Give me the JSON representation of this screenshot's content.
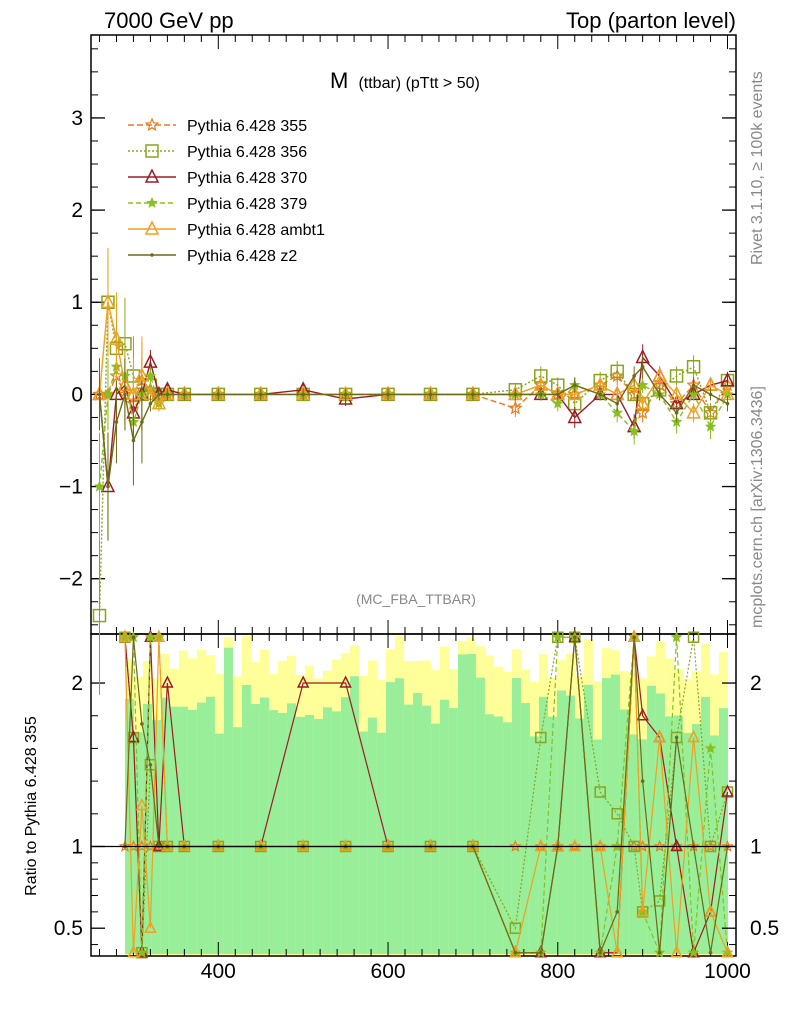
{
  "header": {
    "left": "7000 GeV pp",
    "right": "Top (parton level)"
  },
  "side_labels": {
    "rivet": "Rivet 3.1.10, ≥ 100k events",
    "source": "mcplots.cern.ch [arXiv:1306.3436]"
  },
  "chart_data": {
    "type": "line",
    "title_main": "M",
    "title_sub": "(ttbar) (pTtt > 50)",
    "analysis_tag": "(MC_FBA_TTBAR)",
    "xlim": [
      250,
      1010
    ],
    "main_panel": {
      "ylim": [
        -2.6,
        3.9
      ],
      "yticks": [
        -2,
        -1,
        0,
        1,
        2,
        3
      ],
      "ytick_labels": [
        "−2",
        "−1",
        "0",
        "1",
        "2",
        "3"
      ]
    },
    "ratio_panel": {
      "ylabel": "Ratio to Pythia 6.428 355",
      "ylim": [
        0.33,
        2.3
      ],
      "yticks": [
        0.5,
        1,
        2
      ],
      "ytick_labels": [
        "0.5",
        "1",
        "2"
      ],
      "reference_line": 1
    },
    "xticks": [
      400,
      600,
      800,
      1000
    ],
    "xtick_labels": [
      "400",
      "600",
      "800",
      "1000"
    ],
    "series": [
      {
        "name": "Pythia 6.428 355",
        "color": "#f07818",
        "marker": "star",
        "dash": "6,3",
        "x": [
          260,
          270,
          280,
          290,
          300,
          310,
          320,
          330,
          340,
          360,
          400,
          450,
          500,
          550,
          600,
          650,
          700,
          750,
          780,
          800,
          820,
          850,
          870,
          890,
          900,
          920,
          940,
          960,
          980,
          1000
        ],
        "y": [
          0,
          0,
          0.2,
          0,
          -0.1,
          0.15,
          0.05,
          0,
          0,
          0,
          0,
          0,
          0,
          0,
          0,
          0,
          0,
          -0.15,
          0.1,
          0,
          0,
          0.1,
          0.2,
          0,
          -0.2,
          0.1,
          -0.1,
          0.1,
          -0.2,
          0.1
        ]
      },
      {
        "name": "Pythia 6.428 356",
        "color": "#8aa41c",
        "marker": "square",
        "dash": "2,2",
        "x": [
          260,
          270,
          280,
          290,
          300,
          310,
          320,
          330,
          340,
          360,
          400,
          450,
          500,
          550,
          600,
          650,
          700,
          750,
          780,
          800,
          820,
          850,
          870,
          890,
          900,
          920,
          940,
          960,
          980,
          1000
        ],
        "y": [
          -2.4,
          1.0,
          0.5,
          0.55,
          0.2,
          0,
          0.1,
          0,
          0,
          0,
          0,
          0,
          0,
          0,
          0,
          0,
          0,
          0.05,
          0.2,
          0.1,
          -0.1,
          0.15,
          0.25,
          0,
          -0.1,
          0.05,
          0.2,
          0.3,
          -0.2,
          0.15
        ]
      },
      {
        "name": "Pythia 6.428 370",
        "color": "#9c1c26",
        "marker": "triangle",
        "dash": "",
        "x": [
          260,
          270,
          280,
          290,
          300,
          310,
          320,
          330,
          340,
          360,
          400,
          450,
          500,
          550,
          600,
          650,
          700,
          750,
          780,
          800,
          820,
          850,
          870,
          890,
          900,
          920,
          940,
          960,
          980,
          1000
        ],
        "y": [
          0,
          -1.0,
          0,
          0.1,
          -0.2,
          0,
          0.35,
          0,
          0.05,
          0,
          0,
          0,
          0.05,
          -0.05,
          0,
          0,
          0,
          0,
          0,
          0,
          -0.25,
          0,
          0,
          -0.35,
          0.4,
          0.2,
          -0.1,
          0,
          0.1,
          0.15
        ]
      },
      {
        "name": "Pythia 6.428 379",
        "color": "#88c020",
        "marker": "smallstar",
        "dash": "5,3",
        "x": [
          260,
          270,
          280,
          290,
          300,
          310,
          320,
          330,
          340,
          360,
          400,
          450,
          500,
          550,
          600,
          650,
          700,
          750,
          780,
          800,
          820,
          850,
          870,
          890,
          900,
          920,
          940,
          960,
          980,
          1000
        ],
        "y": [
          -1.0,
          0,
          0.3,
          0.2,
          -0.3,
          0,
          0.2,
          -0.1,
          0,
          0,
          0,
          0,
          0,
          0,
          0,
          0,
          0,
          0,
          0,
          -0.1,
          0.1,
          0,
          -0.2,
          -0.4,
          0.1,
          0,
          -0.3,
          0,
          -0.35,
          0
        ]
      },
      {
        "name": "Pythia 6.428 ambt1",
        "color": "#f0a020",
        "marker": "opentriangle",
        "dash": "",
        "x": [
          260,
          270,
          280,
          290,
          300,
          310,
          320,
          330,
          340,
          360,
          400,
          450,
          500,
          550,
          600,
          650,
          700,
          750,
          780,
          800,
          820,
          850,
          870,
          890,
          900,
          920,
          940,
          960,
          980,
          1000
        ],
        "y": [
          0,
          1.0,
          0.6,
          0.1,
          0,
          0.2,
          0,
          -0.1,
          0,
          0,
          0,
          0,
          0,
          0,
          0,
          0,
          0,
          0,
          0.1,
          0,
          0,
          0.1,
          0,
          0.1,
          -0.1,
          0.2,
          0,
          -0.2,
          0.1,
          0
        ]
      },
      {
        "name": "Pythia 6.428 z2",
        "color": "#6c6c18",
        "marker": "dot",
        "dash": "",
        "x": [
          260,
          270,
          280,
          290,
          300,
          310,
          320,
          330,
          340,
          360,
          400,
          450,
          500,
          550,
          600,
          650,
          700,
          750,
          780,
          800,
          820,
          850,
          870,
          890,
          900,
          920,
          940,
          960,
          980,
          1000
        ],
        "y": [
          0,
          -1.0,
          -0.3,
          0,
          -0.5,
          -0.3,
          -0.1,
          0,
          0,
          0,
          0,
          0,
          0,
          0,
          0,
          0,
          0,
          0,
          0,
          0,
          0.1,
          0,
          -0.1,
          0.2,
          0.3,
          0,
          -0.2,
          0.1,
          0,
          -0.1
        ]
      }
    ],
    "ratio_bands": {
      "x_start": 290,
      "x_end": 1000,
      "note_colors": {
        "outer": "#ffff99",
        "inner": "#99ee99"
      }
    }
  }
}
